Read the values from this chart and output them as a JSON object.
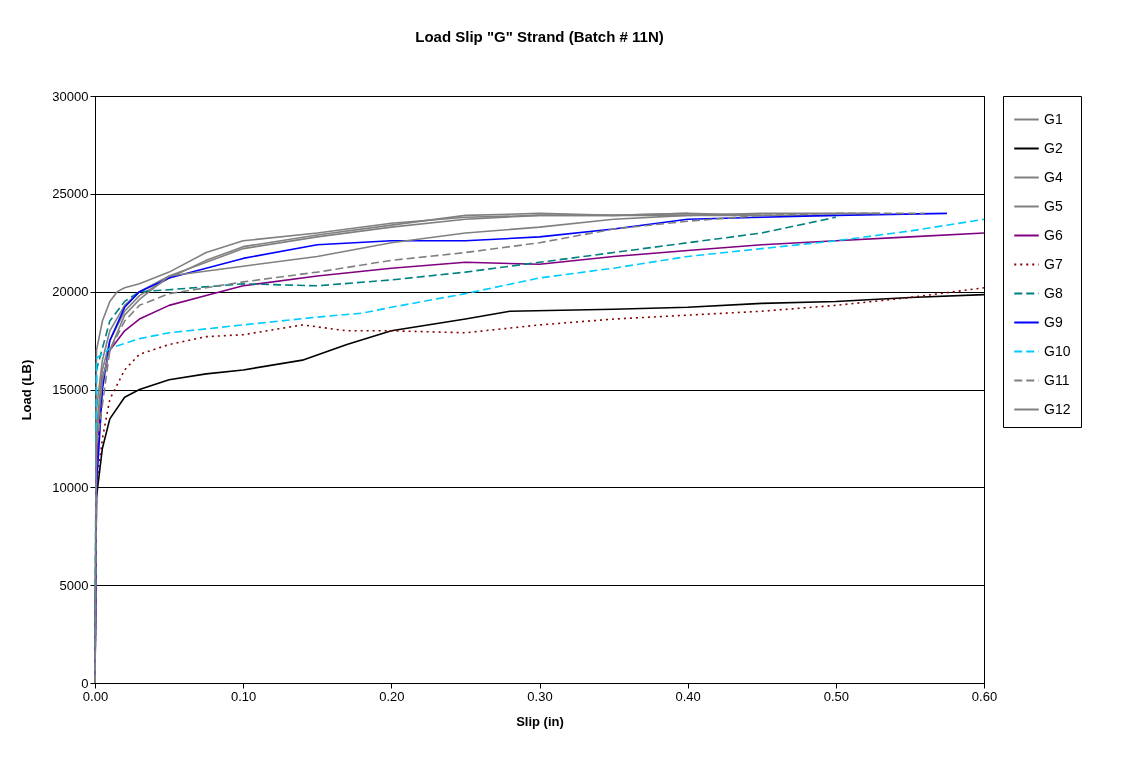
{
  "chart_data": {
    "type": "line",
    "title": "Load Slip \"G\" Strand (Batch # 11N)",
    "xlabel": "Slip (in)",
    "ylabel": "Load (LB)",
    "xlim": [
      0,
      0.6
    ],
    "ylim": [
      0,
      30000
    ],
    "xticks": [
      {
        "value": 0,
        "label": "0.00"
      },
      {
        "value": 0.1,
        "label": "0.10"
      },
      {
        "value": 0.2,
        "label": "0.20"
      },
      {
        "value": 0.3,
        "label": "0.30"
      },
      {
        "value": 0.4,
        "label": "0.40"
      },
      {
        "value": 0.5,
        "label": "0.50"
      },
      {
        "value": 0.6,
        "label": "0.60"
      }
    ],
    "yticks": [
      0,
      5000,
      10000,
      15000,
      20000,
      25000,
      30000
    ],
    "grid": "y",
    "legend": "right",
    "marker": "none",
    "series": [
      {
        "name": "G1",
        "color": "#808080",
        "line_style": "solid",
        "x": [
          0,
          0.001,
          0.005,
          0.01,
          0.015,
          0.02,
          0.03,
          0.05,
          0.075,
          0.1,
          0.15,
          0.2,
          0.25,
          0.3,
          0.35,
          0.4,
          0.45
        ],
        "values": [
          0,
          17000,
          18500,
          19500,
          20000,
          20200,
          20400,
          21000,
          22000,
          22600,
          23000,
          23500,
          23800,
          23900,
          23900,
          23900,
          23900
        ]
      },
      {
        "name": "G2",
        "color": "#000000",
        "line_style": "solid",
        "x": [
          0,
          0.001,
          0.005,
          0.01,
          0.02,
          0.03,
          0.05,
          0.075,
          0.1,
          0.14,
          0.17,
          0.2,
          0.25,
          0.28,
          0.35,
          0.4,
          0.45,
          0.5,
          0.55,
          0.6
        ],
        "values": [
          0,
          9500,
          12000,
          13500,
          14600,
          15000,
          15500,
          15800,
          16000,
          16500,
          17300,
          18000,
          18600,
          19000,
          19100,
          19200,
          19400,
          19500,
          19700,
          19850
        ]
      },
      {
        "name": "G4",
        "color": "#808080",
        "line_style": "solid",
        "x": [
          0,
          0.001,
          0.005,
          0.01,
          0.02,
          0.03,
          0.05,
          0.075,
          0.1,
          0.15,
          0.2,
          0.25,
          0.3,
          0.35,
          0.4,
          0.45,
          0.5
        ],
        "values": [
          0,
          14000,
          16500,
          18000,
          19300,
          20000,
          20800,
          21500,
          22200,
          22800,
          23300,
          23700,
          23900,
          23900,
          24000,
          23900,
          23900
        ]
      },
      {
        "name": "G5",
        "color": "#808080",
        "line_style": "solid",
        "x": [
          0,
          0.001,
          0.005,
          0.01,
          0.02,
          0.03,
          0.05,
          0.075,
          0.1,
          0.15,
          0.2,
          0.25,
          0.3,
          0.35,
          0.4
        ],
        "values": [
          0,
          13000,
          16000,
          17500,
          19000,
          19800,
          20700,
          21600,
          22300,
          22900,
          23400,
          23900,
          24000,
          23900,
          24000
        ]
      },
      {
        "name": "G6",
        "color": "#800080",
        "line_style": "solid",
        "x": [
          0,
          0.001,
          0.005,
          0.01,
          0.02,
          0.03,
          0.05,
          0.075,
          0.1,
          0.15,
          0.2,
          0.25,
          0.3,
          0.35,
          0.4,
          0.45,
          0.5,
          0.55,
          0.6
        ],
        "values": [
          0,
          11000,
          15500,
          17000,
          18000,
          18600,
          19300,
          19800,
          20300,
          20800,
          21200,
          21500,
          21400,
          21800,
          22100,
          22400,
          22600,
          22800,
          23000
        ]
      },
      {
        "name": "G7",
        "color": "#800000",
        "line_style": "dotted",
        "x": [
          0,
          0.001,
          0.005,
          0.01,
          0.02,
          0.03,
          0.05,
          0.075,
          0.1,
          0.14,
          0.17,
          0.2,
          0.25,
          0.3,
          0.35,
          0.4,
          0.45,
          0.5,
          0.55,
          0.6
        ],
        "values": [
          0,
          10000,
          12500,
          14500,
          16000,
          16800,
          17300,
          17700,
          17800,
          18300,
          18000,
          18000,
          17900,
          18300,
          18600,
          18800,
          19000,
          19300,
          19700,
          20200
        ]
      },
      {
        "name": "G8",
        "color": "#008080",
        "line_style": "dashed",
        "x": [
          0,
          0.001,
          0.01,
          0.02,
          0.03,
          0.05,
          0.1,
          0.15,
          0.2,
          0.25,
          0.3,
          0.35,
          0.4,
          0.45,
          0.5
        ],
        "values": [
          0,
          16000,
          18500,
          19500,
          20000,
          20100,
          20400,
          20300,
          20600,
          21000,
          21500,
          22000,
          22500,
          23000,
          23800
        ]
      },
      {
        "name": "G9",
        "color": "#0000ff",
        "line_style": "solid",
        "x": [
          0,
          0.001,
          0.005,
          0.01,
          0.02,
          0.03,
          0.05,
          0.075,
          0.1,
          0.15,
          0.2,
          0.25,
          0.3,
          0.35,
          0.4,
          0.45,
          0.5,
          0.575
        ],
        "values": [
          0,
          10000,
          15000,
          17500,
          19200,
          20000,
          20700,
          21200,
          21700,
          22400,
          22600,
          22600,
          22800,
          23200,
          23700,
          23800,
          23900,
          24000
        ]
      },
      {
        "name": "G10",
        "color": "#00ccff",
        "line_style": "dashed",
        "x": [
          0,
          0.001,
          0.01,
          0.03,
          0.05,
          0.1,
          0.15,
          0.18,
          0.2,
          0.25,
          0.3,
          0.35,
          0.4,
          0.45,
          0.5,
          0.55,
          0.6
        ],
        "values": [
          0,
          16600,
          17100,
          17600,
          17900,
          18300,
          18700,
          18900,
          19200,
          19900,
          20700,
          21200,
          21800,
          22200,
          22600,
          23100,
          23700
        ]
      },
      {
        "name": "G11",
        "color": "#808080",
        "line_style": "dashed",
        "x": [
          0,
          0.001,
          0.01,
          0.02,
          0.03,
          0.05,
          0.1,
          0.15,
          0.2,
          0.25,
          0.3,
          0.35,
          0.4,
          0.45,
          0.5,
          0.56
        ],
        "values": [
          0,
          12000,
          17000,
          18500,
          19300,
          19900,
          20500,
          21000,
          21600,
          22000,
          22500,
          23200,
          23600,
          23900,
          24000,
          24000
        ]
      },
      {
        "name": "G12",
        "color": "#808080",
        "line_style": "solid",
        "x": [
          0,
          0.001,
          0.005,
          0.01,
          0.02,
          0.03,
          0.05,
          0.1,
          0.15,
          0.2,
          0.25,
          0.3,
          0.35,
          0.4,
          0.45,
          0.5,
          0.53
        ],
        "values": [
          0,
          12500,
          15500,
          17000,
          18800,
          19600,
          20800,
          21300,
          21800,
          22500,
          23000,
          23300,
          23700,
          23900,
          24000,
          24000,
          24000
        ]
      }
    ]
  }
}
